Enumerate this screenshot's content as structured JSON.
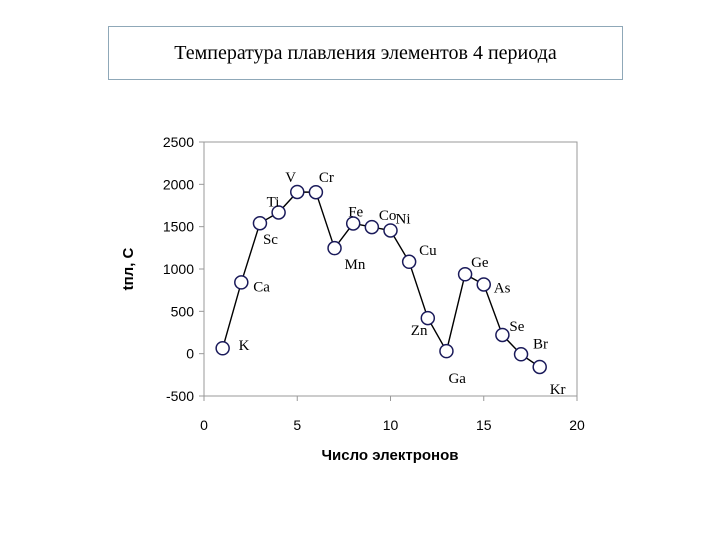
{
  "title": "Температура плавления элементов 4 периода",
  "chart_data": {
    "type": "line",
    "title": "Температура плавления элементов 4 периода",
    "xlabel": "Число электронов",
    "ylabel": "tпл, С",
    "xlim": [
      0,
      20
    ],
    "ylim": [
      -500,
      2500
    ],
    "xticks": [
      0,
      5,
      10,
      15,
      20
    ],
    "yticks": [
      -500,
      0,
      500,
      1000,
      1500,
      2000,
      2500
    ],
    "grid": false,
    "series": [
      {
        "x": [
          1,
          2,
          3,
          4,
          5,
          6,
          7,
          8,
          9,
          10,
          11,
          12,
          13,
          14,
          15,
          16,
          17,
          18
        ],
        "values": [
          64,
          842,
          1541,
          1668,
          1910,
          1907,
          1246,
          1538,
          1495,
          1455,
          1085,
          420,
          30,
          938,
          817,
          221,
          -7,
          -157
        ],
        "labels": [
          "K",
          "Ca",
          "Sc",
          "Ti",
          "V",
          "Cr",
          "Mn",
          "Fe",
          "Co",
          "Ni",
          "Cu",
          "Zn",
          "Ga",
          "Ge",
          "As",
          "Se",
          "Br",
          "Kr"
        ]
      }
    ]
  }
}
